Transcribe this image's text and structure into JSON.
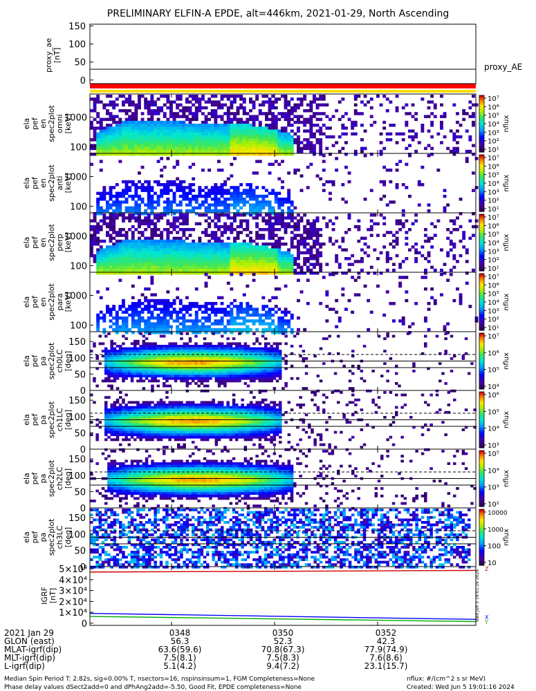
{
  "title": "PRELIMINARY ELFIN-A EPDE, alt=446km, 2021-01-29, North Ascending",
  "chart_data": [
    {
      "type": "line",
      "panel": "proxy_ae",
      "ylabel_lines": [
        "proxy_ae",
        "[nT]"
      ],
      "ylim": [
        -10,
        155
      ],
      "y_ticks": [
        "150",
        "100",
        "50",
        "0"
      ],
      "legend": "proxy_AE",
      "series": [
        {
          "name": "proxy_AE",
          "values": [
            30,
            30
          ]
        }
      ]
    },
    {
      "type": "heatmap",
      "panel": "energy-1",
      "ylabel_lines": [
        "ela",
        "pef",
        "en",
        "spec2plot",
        "omni",
        "[keV]"
      ],
      "y_scale": "log",
      "y_ticks": [
        "1000",
        "100"
      ],
      "colorbar": {
        "label": "nflux",
        "ticks": [
          "10⁷",
          "10⁶",
          "10⁵",
          "10⁴",
          "10³",
          "10²",
          "10¹"
        ]
      }
    },
    {
      "type": "heatmap",
      "panel": "energy-2",
      "ylabel_lines": [
        "ela",
        "pef",
        "en",
        "spec2plot",
        "anti",
        "[keV]"
      ],
      "y_scale": "log",
      "y_ticks": [
        "1000",
        "100"
      ],
      "colorbar": {
        "label": "nflux",
        "ticks": [
          "10⁷",
          "10⁶",
          "10⁵",
          "10⁴",
          "10³",
          "10²",
          "10¹"
        ]
      }
    },
    {
      "type": "heatmap",
      "panel": "energy-3",
      "ylabel_lines": [
        "ela",
        "pef",
        "en",
        "spec2plot",
        "perp",
        "[keV]"
      ],
      "y_scale": "log",
      "y_ticks": [
        "1000",
        "100"
      ],
      "colorbar": {
        "label": "nflux",
        "ticks": [
          "10⁷",
          "10⁶",
          "10⁵",
          "10⁴",
          "10³",
          "10²",
          "10¹"
        ]
      }
    },
    {
      "type": "heatmap",
      "panel": "energy-4",
      "ylabel_lines": [
        "ela",
        "pef",
        "en",
        "spec2plot",
        "para",
        "[keV]"
      ],
      "y_scale": "log",
      "y_ticks": [
        "1000",
        "100"
      ],
      "colorbar": {
        "label": "nflux",
        "ticks": [
          "10⁷",
          "10⁶",
          "10⁵",
          "10⁴",
          "10³",
          "10²",
          "10¹"
        ]
      }
    },
    {
      "type": "heatmap",
      "panel": "pa-ch0",
      "ylabel_lines": [
        "ela",
        "pef",
        "pa",
        "spec2plot",
        "ch0LC",
        "[deg]"
      ],
      "ylim": [
        0,
        180
      ],
      "y_ticks": [
        "150",
        "100",
        "50",
        "0"
      ],
      "colorbar": {
        "label": "nflux",
        "ticks": [
          "10⁷",
          "10⁶",
          "10⁵",
          "10⁴"
        ]
      }
    },
    {
      "type": "heatmap",
      "panel": "pa-ch1",
      "ylabel_lines": [
        "ela",
        "pef",
        "pa",
        "spec2plot",
        "ch1LC",
        "[deg]"
      ],
      "ylim": [
        0,
        180
      ],
      "y_ticks": [
        "150",
        "100",
        "50",
        "0"
      ],
      "colorbar": {
        "label": "nflux",
        "ticks": [
          "10⁶",
          "10⁵",
          "10⁴",
          "10³"
        ]
      }
    },
    {
      "type": "heatmap",
      "panel": "pa-ch2",
      "ylabel_lines": [
        "ela",
        "pef",
        "pa",
        "spec2plot",
        "ch2LC",
        "[deg]"
      ],
      "ylim": [
        0,
        180
      ],
      "y_ticks": [
        "150",
        "100",
        "50",
        "0"
      ],
      "colorbar": {
        "label": "nflux",
        "ticks": [
          "10⁵",
          "10⁴",
          "10³",
          "10²"
        ]
      }
    },
    {
      "type": "heatmap",
      "panel": "pa-ch3",
      "ylabel_lines": [
        "ela",
        "pef",
        "pa",
        "spec2plot",
        "ch3LC",
        "[deg]"
      ],
      "ylim": [
        0,
        180
      ],
      "y_ticks": [
        "150",
        "100",
        "50",
        "0"
      ],
      "colorbar": {
        "label": "nflux",
        "ticks": [
          "10000",
          "1000",
          "100",
          "10"
        ]
      }
    },
    {
      "type": "line",
      "panel": "igrf",
      "ylabel_lines": [
        "IGRF",
        "[nT]"
      ],
      "ylim": [
        -2000,
        52000
      ],
      "y_ticks": [
        "5×10⁴",
        "4×10⁴",
        "3×10⁴",
        "2×10⁴",
        "1×10⁴",
        "0"
      ],
      "legend": [
        "X",
        "Y",
        "Z"
      ],
      "series": [
        {
          "name": "X",
          "x": [
            0,
            1
          ],
          "values": [
            9000,
            3500
          ]
        },
        {
          "name": "Y",
          "x": [
            0,
            1
          ],
          "values": [
            6200,
            1500
          ]
        },
        {
          "name": "Z",
          "x": [
            0,
            1
          ],
          "values": [
            47000,
            48500
          ]
        }
      ]
    }
  ],
  "time_axis": {
    "ticks": [
      "0348",
      "0350",
      "0352"
    ],
    "rows": [
      {
        "label": "2021 Jan 29",
        "values": [
          "0348",
          "0350",
          "0352"
        ]
      },
      {
        "label": "GLON (east)",
        "values": [
          "56.3",
          "52.3",
          "42.3"
        ]
      },
      {
        "label": "MLAT-igrf(dip)",
        "values": [
          "63.6(59.6)",
          "70.8(67.3)",
          "77.9(74.9)"
        ]
      },
      {
        "label": "MLT-igrf(dip)",
        "values": [
          "7.5(8.1)",
          "7.5(8.3)",
          "7.6(8.6)"
        ]
      },
      {
        "label": "L-igrf(dip)",
        "values": [
          "5.1(4.2)",
          "9.4(7.2)",
          "23.1(15.7)"
        ]
      }
    ]
  },
  "vertical_stamp": "Wed Jun  5 19:01:16 2024",
  "footer": {
    "line1": "Median Spin Period T: 2.82s, sig=0.00% T, nsectors=16, nspinsinsum=1, FGM Completeness=None",
    "line2": "Phase delay values dSect2add=0 and dPhAng2add=-5.50, Good Fit, EPDE completeness=None",
    "units": "nflux: #/(cm^2 s sr MeV)",
    "created": "Created: Wed Jun  5 19:01:16 2024"
  },
  "colors": {
    "red_bar": "#ff0000",
    "yellow_bar": "#ffdd00",
    "igrf_x": "#0000ff",
    "igrf_y": "#00aa00",
    "igrf_z": "#cc0000"
  }
}
